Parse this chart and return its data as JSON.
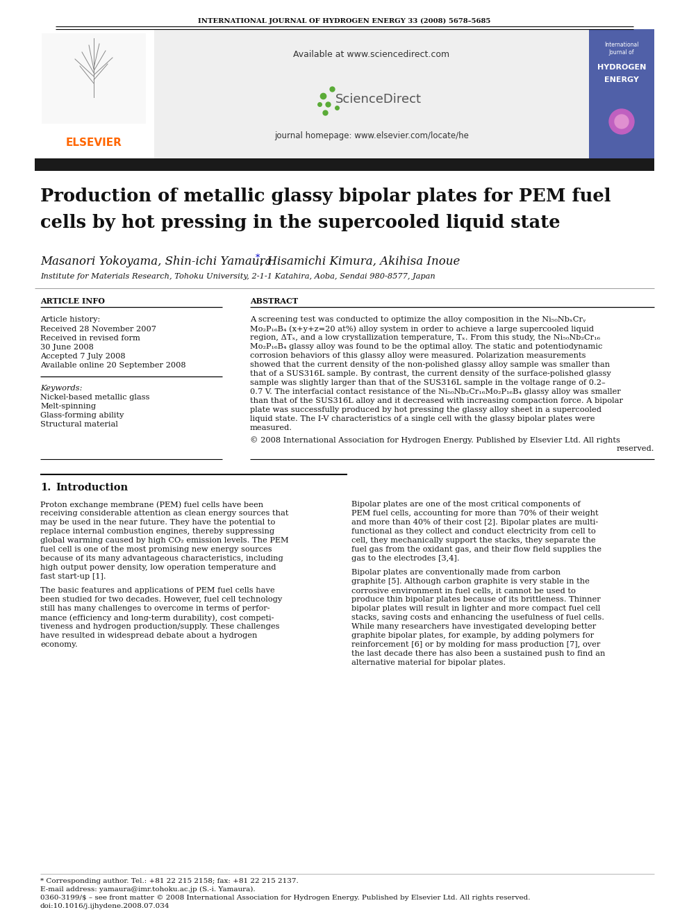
{
  "journal_header": "INTERNATIONAL JOURNAL OF HYDROGEN ENERGY 33 (2008) 5678–5685",
  "available_text": "Available at www.sciencedirect.com",
  "journal_homepage": "journal homepage: www.elsevier.com/locate/he",
  "article_info_header": "ARTICLE INFO",
  "abstract_header": "ABSTRACT",
  "article_history_label": "Article history:",
  "received1": "Received 28 November 2007",
  "received2": "Received in revised form",
  "received2b": "30 June 2008",
  "accepted": "Accepted 7 July 2008",
  "available_online": "Available online 20 September 2008",
  "keywords_label": "Keywords:",
  "keyword1": "Nickel-based metallic glass",
  "keyword2": "Melt-spinning",
  "keyword3": "Glass-forming ability",
  "keyword4": "Structural material",
  "abstract_lines": [
    "A screening test was conducted to optimize the alloy composition in the Ni₅₀NbₓCrᵧ",
    "Mo₂P₁₆B₄ (x+y+z=20 at%) alloy system in order to achieve a large supercooled liquid",
    "region, ΔTₓ, and a low crystallization temperature, Tₓ. From this study, the Ni₅₀Nb₂Cr₁₆",
    "Mo₂P₁₆B₄ glassy alloy was found to be the optimal alloy. The static and potentiodynamic",
    "corrosion behaviors of this glassy alloy were measured. Polarization measurements",
    "showed that the current density of the non-polished glassy alloy sample was smaller than",
    "that of a SUS316L sample. By contrast, the current density of the surface-polished glassy",
    "sample was slightly larger than that of the SUS316L sample in the voltage range of 0.2–",
    "0.7 V. The interfacial contact resistance of the Ni₅₀Nb₂Cr₁₆Mo₂P₁₆B₄ glassy alloy was smaller",
    "than that of the SUS316L alloy and it decreased with increasing compaction force. A bipolar",
    "plate was successfully produced by hot pressing the glassy alloy sheet in a supercooled",
    "liquid state. The I-V characteristics of a single cell with the glassy bipolar plates were",
    "measured."
  ],
  "copyright1": "© 2008 International Association for Hydrogen Energy. Published by Elsevier Ltd. All rights",
  "copyright2": "reserved.",
  "intro_c1_p1": [
    "Proton exchange membrane (PEM) fuel cells have been",
    "receiving considerable attention as clean energy sources that",
    "may be used in the near future. They have the potential to",
    "replace internal combustion engines, thereby suppressing",
    "global warming caused by high CO₂ emission levels. The PEM",
    "fuel cell is one of the most promising new energy sources",
    "because of its many advantageous characteristics, including",
    "high output power density, low operation temperature and",
    "fast start-up [1]."
  ],
  "intro_c1_p2": [
    "The basic features and applications of PEM fuel cells have",
    "been studied for two decades. However, fuel cell technology",
    "still has many challenges to overcome in terms of perfor-",
    "mance (efficiency and long-term durability), cost competi-",
    "tiveness and hydrogen production/supply. These challenges",
    "have resulted in widespread debate about a hydrogen",
    "economy."
  ],
  "intro_c2_p1": [
    "Bipolar plates are one of the most critical components of",
    "PEM fuel cells, accounting for more than 70% of their weight",
    "and more than 40% of their cost [2]. Bipolar plates are multi-",
    "functional as they collect and conduct electricity from cell to",
    "cell, they mechanically support the stacks, they separate the",
    "fuel gas from the oxidant gas, and their flow field supplies the",
    "gas to the electrodes [3,4]."
  ],
  "intro_c2_p2": [
    "Bipolar plates are conventionally made from carbon",
    "graphite [5]. Although carbon graphite is very stable in the",
    "corrosive environment in fuel cells, it cannot be used to",
    "produce thin bipolar plates because of its brittleness. Thinner",
    "bipolar plates will result in lighter and more compact fuel cell",
    "stacks, saving costs and enhancing the usefulness of fuel cells.",
    "While many researchers have investigated developing better",
    "graphite bipolar plates, for example, by adding polymers for",
    "reinforcement [6] or by molding for mass production [7], over",
    "the last decade there has also been a sustained push to find an",
    "alternative material for bipolar plates."
  ],
  "footnote_star": "* Corresponding author. Tel.: +81 22 215 2158; fax: +81 22 215 2137.",
  "footnote_email": "E-mail address: yamaura@imr.tohoku.ac.jp (S.-i. Yamaura).",
  "footnote_issn": "0360-3199/$ – see front matter © 2008 International Association for Hydrogen Energy. Published by Elsevier Ltd. All rights reserved.",
  "footnote_doi": "doi:10.1016/j.ijhydene.2008.07.034",
  "bg_color": "#ffffff",
  "elsevier_color": "#ff6600",
  "sciencedirect_green": "#5aab37",
  "gray_box_color": "#efefef",
  "dark_bar_color": "#1a1a1a"
}
